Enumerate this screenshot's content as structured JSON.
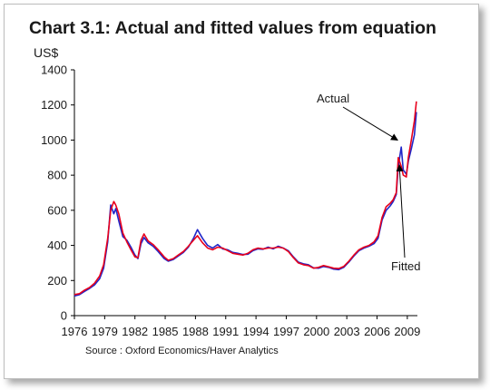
{
  "chart_data": {
    "type": "line",
    "title": "Chart 3.1: Actual and fitted values from equation",
    "ylabel": "US$",
    "xlabel": "",
    "source": "Source : Oxford Economics/Haver Analytics",
    "xlim": [
      1976,
      2010
    ],
    "ylim": [
      0,
      1400
    ],
    "x_ticks": [
      1976,
      1979,
      1982,
      1985,
      1988,
      1991,
      1994,
      1997,
      2000,
      2003,
      2006,
      2009
    ],
    "y_ticks": [
      0,
      200,
      400,
      600,
      800,
      1000,
      1200,
      1400
    ],
    "grid": false,
    "legend": "none",
    "annotations": [
      {
        "text": "Actual",
        "series": "Actual",
        "point": [
          2008.3,
          1000
        ]
      },
      {
        "text": "Fitted",
        "series": "Fitted",
        "point": [
          2008.3,
          850
        ]
      }
    ],
    "series": [
      {
        "name": "Actual",
        "color": "#e8001c",
        "x": [
          1976.0,
          1976.5,
          1977.0,
          1977.5,
          1978.0,
          1978.5,
          1978.9,
          1979.3,
          1979.6,
          1979.9,
          1980.1,
          1980.4,
          1980.8,
          1981.2,
          1981.6,
          1982.0,
          1982.3,
          1982.6,
          1982.9,
          1983.3,
          1983.8,
          1984.3,
          1984.9,
          1985.3,
          1985.8,
          1986.3,
          1986.8,
          1987.3,
          1987.8,
          1988.2,
          1988.7,
          1989.2,
          1989.7,
          1990.2,
          1990.7,
          1991.2,
          1991.7,
          1992.2,
          1992.7,
          1993.2,
          1993.7,
          1994.2,
          1994.7,
          1995.2,
          1995.7,
          1996.2,
          1996.7,
          1997.2,
          1997.7,
          1998.2,
          1998.7,
          1999.2,
          1999.7,
          2000.2,
          2000.7,
          2001.2,
          2001.7,
          2002.2,
          2002.7,
          2003.2,
          2003.7,
          2004.2,
          2004.7,
          2005.2,
          2005.7,
          2006.1,
          2006.5,
          2006.9,
          2007.3,
          2007.6,
          2007.9,
          2008.1,
          2008.4,
          2008.6,
          2008.9,
          2009.1,
          2009.4,
          2009.7,
          2009.9
        ],
        "values": [
          120,
          125,
          145,
          160,
          185,
          225,
          290,
          440,
          600,
          650,
          630,
          580,
          470,
          420,
          375,
          335,
          330,
          430,
          465,
          425,
          405,
          375,
          335,
          315,
          325,
          345,
          365,
          395,
          430,
          455,
          415,
          385,
          375,
          390,
          385,
          370,
          355,
          350,
          345,
          355,
          375,
          385,
          380,
          385,
          385,
          390,
          385,
          365,
          330,
          300,
          290,
          285,
          270,
          275,
          285,
          278,
          270,
          268,
          280,
          310,
          345,
          375,
          390,
          400,
          420,
          455,
          560,
          620,
          640,
          660,
          700,
          900,
          850,
          800,
          790,
          900,
          1000,
          1110,
          1220
        ]
      },
      {
        "name": "Fitted",
        "color": "#1f26c9",
        "x": [
          1976.0,
          1976.5,
          1977.0,
          1977.5,
          1978.0,
          1978.5,
          1978.9,
          1979.3,
          1979.6,
          1979.9,
          1980.1,
          1980.4,
          1980.8,
          1981.2,
          1981.6,
          1982.0,
          1982.3,
          1982.6,
          1982.9,
          1983.3,
          1983.8,
          1984.3,
          1984.9,
          1985.3,
          1985.8,
          1986.3,
          1986.8,
          1987.3,
          1987.8,
          1988.2,
          1988.7,
          1989.2,
          1989.7,
          1990.2,
          1990.7,
          1991.2,
          1991.7,
          1992.2,
          1992.7,
          1993.2,
          1993.7,
          1994.2,
          1994.7,
          1995.2,
          1995.7,
          1996.2,
          1996.7,
          1997.2,
          1997.7,
          1998.2,
          1998.7,
          1999.2,
          1999.7,
          2000.2,
          2000.7,
          2001.2,
          2001.7,
          2002.2,
          2002.7,
          2003.2,
          2003.7,
          2004.2,
          2004.7,
          2005.2,
          2005.7,
          2006.1,
          2006.5,
          2006.9,
          2007.3,
          2007.6,
          2007.9,
          2008.1,
          2008.4,
          2008.6,
          2008.9,
          2009.1,
          2009.4,
          2009.7,
          2009.9
        ],
        "values": [
          112,
          120,
          138,
          155,
          175,
          210,
          270,
          420,
          630,
          580,
          610,
          540,
          450,
          430,
          390,
          345,
          325,
          410,
          445,
          415,
          395,
          365,
          325,
          310,
          320,
          340,
          360,
          390,
          440,
          490,
          440,
          400,
          385,
          405,
          380,
          375,
          360,
          355,
          348,
          350,
          370,
          380,
          378,
          390,
          380,
          395,
          385,
          370,
          335,
          305,
          295,
          290,
          272,
          270,
          280,
          275,
          265,
          262,
          275,
          305,
          340,
          370,
          385,
          395,
          410,
          440,
          545,
          600,
          625,
          650,
          690,
          850,
          960,
          830,
          805,
          880,
          950,
          1030,
          1160
        ]
      }
    ]
  }
}
